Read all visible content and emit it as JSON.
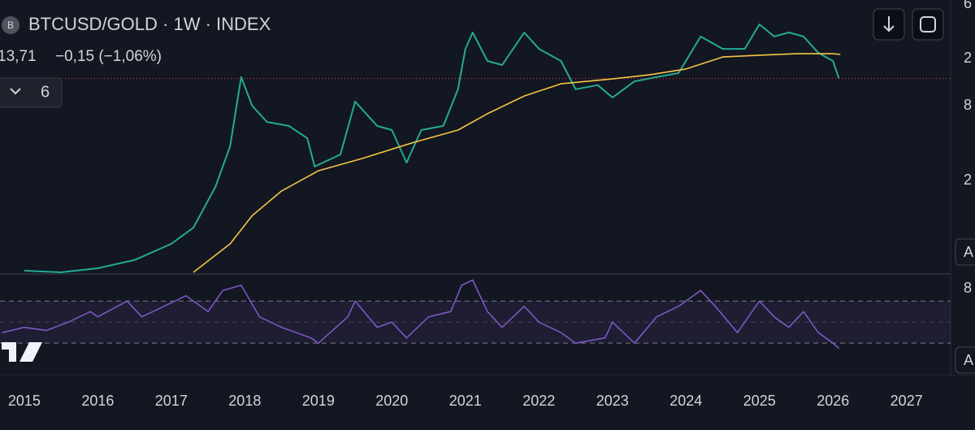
{
  "header": {
    "badge": "B",
    "title": "BTCUSD/GOLD · 1W · INDEX",
    "price": "13,71",
    "change": "−0,15 (−1,06%)",
    "indicator_count": "6"
  },
  "price_scale": [
    "6",
    "2",
    "8",
    "2"
  ],
  "rsi_scale": [
    "8"
  ],
  "scale_buttons": [
    "A",
    "A"
  ],
  "chart_data": [
    {
      "type": "line",
      "log_scale": true,
      "xlim": [
        2014.67,
        2027.6
      ],
      "ylim": [
        0.353,
        60.4
      ],
      "xticks": [
        2015,
        2016,
        2017,
        2018,
        2019,
        2020,
        2021,
        2022,
        2023,
        2024,
        2025,
        2026,
        2027
      ],
      "series": [
        {
          "color": "#22ab94",
          "x": [
            2015.0,
            2015.5,
            2016.0,
            2016.5,
            2017.0,
            2017.3,
            2017.6,
            2017.8,
            2017.95,
            2018.1,
            2018.3,
            2018.6,
            2018.85,
            2018.95,
            2019.3,
            2019.5,
            2019.8,
            2020.0,
            2020.2,
            2020.4,
            2020.7,
            2020.9,
            2021.0,
            2021.1,
            2021.3,
            2021.5,
            2021.8,
            2022.0,
            2022.3,
            2022.5,
            2022.8,
            2023.0,
            2023.3,
            2023.6,
            2023.9,
            2024.0,
            2024.2,
            2024.5,
            2024.8,
            2025.0,
            2025.2,
            2025.4,
            2025.6,
            2025.8,
            2026.0,
            2026.08
          ],
          "values": [
            0.364,
            0.353,
            0.381,
            0.445,
            0.604,
            0.82,
            1.77,
            3.81,
            14.1,
            8.2,
            6.04,
            5.6,
            4.44,
            2.6,
            3.27,
            8.87,
            5.6,
            5.18,
            2.8,
            5.18,
            5.6,
            11.2,
            24.0,
            32.7,
            19.1,
            17.7,
            32.7,
            24.0,
            19.1,
            11.2,
            12.1,
            9.57,
            13.0,
            14.1,
            15.2,
            19.1,
            30.3,
            24.0,
            24.0,
            38.1,
            30.3,
            32.7,
            30.3,
            22.3,
            19.1,
            13.71
          ]
        },
        {
          "color": "#f5c542",
          "x": [
            2017.3,
            2017.8,
            2018.1,
            2018.5,
            2019.0,
            2019.6,
            2020.3,
            2020.9,
            2021.3,
            2021.8,
            2022.3,
            2023.0,
            2023.5,
            2024.0,
            2024.5,
            2025.0,
            2025.5,
            2026.0,
            2026.1
          ],
          "values": [
            0.353,
            0.604,
            1.03,
            1.64,
            2.4,
            3.03,
            4.11,
            5.18,
            7.05,
            9.86,
            12.4,
            13.6,
            14.7,
            16.4,
            20.6,
            21.3,
            21.9,
            21.9,
            21.6
          ]
        }
      ]
    },
    {
      "type": "line",
      "xlim": [
        2014.67,
        2027.6
      ],
      "ylim": [
        0,
        95
      ],
      "bands": [
        70,
        50,
        30
      ],
      "series": [
        {
          "color": "#7e57c2",
          "x": [
            2014.7,
            2015.0,
            2015.3,
            2015.6,
            2015.9,
            2016.0,
            2016.4,
            2016.6,
            2016.9,
            2017.2,
            2017.5,
            2017.7,
            2017.95,
            2018.2,
            2018.5,
            2018.9,
            2019.0,
            2019.4,
            2019.5,
            2019.8,
            2020.0,
            2020.2,
            2020.5,
            2020.8,
            2020.95,
            2021.1,
            2021.3,
            2021.5,
            2021.8,
            2022.0,
            2022.3,
            2022.5,
            2022.9,
            2023.0,
            2023.3,
            2023.6,
            2023.9,
            2024.2,
            2024.4,
            2024.7,
            2025.0,
            2025.2,
            2025.4,
            2025.6,
            2025.8,
            2026.0,
            2026.08
          ],
          "values": [
            40,
            45,
            42,
            50,
            60,
            55,
            70,
            55,
            65,
            75,
            60,
            80,
            85,
            55,
            45,
            35,
            30,
            55,
            70,
            45,
            50,
            35,
            55,
            60,
            85,
            90,
            60,
            45,
            65,
            50,
            40,
            30,
            35,
            50,
            30,
            55,
            65,
            80,
            65,
            40,
            70,
            55,
            45,
            60,
            40,
            30,
            25
          ]
        }
      ]
    }
  ]
}
